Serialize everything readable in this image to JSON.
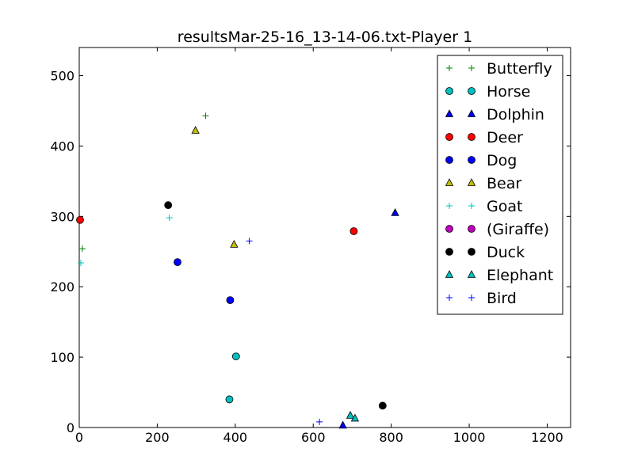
{
  "chart_data": {
    "type": "scatter",
    "title": "resultsMar-25-16_13-14-06.txt-Player 1",
    "xlabel": "",
    "ylabel": "",
    "xlim": [
      0,
      1260
    ],
    "ylim": [
      0,
      540
    ],
    "xticks": [
      0,
      200,
      400,
      600,
      800,
      1000,
      1200
    ],
    "yticks": [
      0,
      100,
      200,
      300,
      400,
      500
    ],
    "grid": false,
    "legend_position": "top-right",
    "series": [
      {
        "name": "Butterfly",
        "marker": "plus",
        "color": "#008000",
        "points": [
          [
            8,
            254
          ],
          [
            324,
            443
          ]
        ]
      },
      {
        "name": "Horse",
        "marker": "circle",
        "color": "#00bfbf",
        "points": [
          [
            385,
            40
          ],
          [
            402,
            101
          ]
        ]
      },
      {
        "name": "Dolphin",
        "marker": "triangle",
        "color": "#0000ff",
        "points": [
          [
            676,
            3
          ],
          [
            810,
            305
          ]
        ]
      },
      {
        "name": "Deer",
        "marker": "circle",
        "color": "#ff0000",
        "points": [
          [
            2,
            295
          ],
          [
            704,
            279
          ]
        ]
      },
      {
        "name": "Dog",
        "marker": "circle",
        "color": "#0000ff",
        "points": [
          [
            252,
            235
          ],
          [
            387,
            181
          ]
        ]
      },
      {
        "name": "Bear",
        "marker": "triangle",
        "color": "#bfbf00",
        "points": [
          [
            298,
            422
          ],
          [
            397,
            260
          ]
        ]
      },
      {
        "name": "Goat",
        "marker": "plus",
        "color": "#00bfbf",
        "points": [
          [
            4,
            234
          ],
          [
            231,
            298
          ]
        ]
      },
      {
        "name": "(Giraffe)",
        "marker": "circle",
        "color": "#bf00bf",
        "points": []
      },
      {
        "name": "Duck",
        "marker": "circle",
        "color": "#000000",
        "points": [
          [
            228,
            316
          ],
          [
            778,
            31
          ]
        ]
      },
      {
        "name": "Elephant",
        "marker": "triangle",
        "color": "#00bfbf",
        "points": [
          [
            695,
            17
          ],
          [
            707,
            13
          ]
        ]
      },
      {
        "name": "Bird",
        "marker": "plus",
        "color": "#0000ff",
        "points": [
          [
            436,
            265
          ],
          [
            616,
            8
          ]
        ]
      }
    ]
  }
}
